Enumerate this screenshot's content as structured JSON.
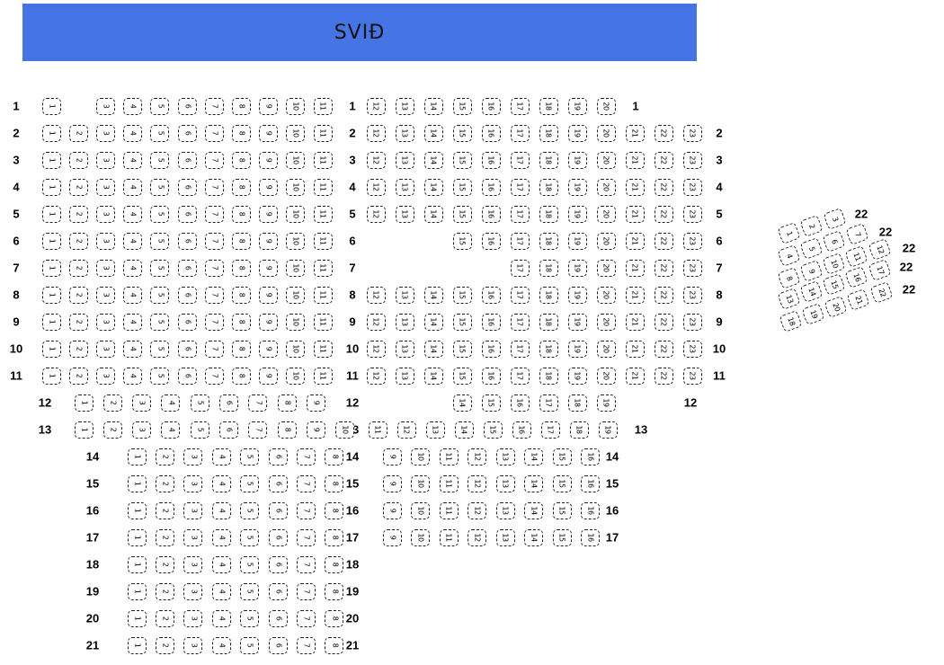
{
  "stage": {
    "label": "SVIÐ"
  },
  "colors": {
    "banner_blue": "#4575e5",
    "seat_border": "#222222",
    "text": "#000000"
  },
  "rows": [
    {
      "num": "1",
      "left_seats": [
        1,
        3,
        4,
        5,
        6,
        7,
        8,
        9,
        10,
        11
      ],
      "right_seats": [
        12,
        13,
        14,
        15,
        16,
        17,
        18,
        19,
        20
      ]
    },
    {
      "num": "2",
      "left_seats": [
        1,
        2,
        3,
        4,
        5,
        6,
        7,
        8,
        9,
        10,
        11
      ],
      "right_seats": [
        12,
        13,
        14,
        15,
        16,
        17,
        18,
        19,
        20,
        21,
        22,
        23
      ]
    },
    {
      "num": "3",
      "left_seats": [
        1,
        2,
        3,
        4,
        5,
        6,
        7,
        8,
        9,
        10,
        11
      ],
      "right_seats": [
        12,
        13,
        14,
        15,
        16,
        17,
        18,
        19,
        20,
        21,
        22,
        23
      ]
    },
    {
      "num": "4",
      "left_seats": [
        1,
        2,
        3,
        4,
        5,
        6,
        7,
        8,
        9,
        10,
        11
      ],
      "right_seats": [
        12,
        13,
        14,
        15,
        16,
        17,
        18,
        19,
        20,
        21,
        22,
        23
      ]
    },
    {
      "num": "5",
      "left_seats": [
        1,
        2,
        3,
        4,
        5,
        6,
        7,
        8,
        9,
        10,
        11
      ],
      "right_seats": [
        12,
        13,
        14,
        15,
        16,
        17,
        18,
        19,
        20,
        21,
        22,
        23
      ]
    },
    {
      "num": "6",
      "left_seats": [
        1,
        2,
        3,
        4,
        5,
        6,
        7,
        8,
        9,
        10,
        11
      ],
      "right_seats": [
        15,
        16,
        17,
        18,
        19,
        20,
        21,
        22,
        23
      ]
    },
    {
      "num": "7",
      "left_seats": [
        1,
        2,
        3,
        4,
        5,
        6,
        7,
        8,
        9,
        10,
        11
      ],
      "right_seats": [
        17,
        18,
        19,
        20,
        21,
        22,
        23
      ]
    },
    {
      "num": "8",
      "left_seats": [
        1,
        2,
        3,
        4,
        5,
        6,
        7,
        8,
        9,
        10,
        11
      ],
      "right_seats": [
        12,
        13,
        14,
        15,
        16,
        17,
        18,
        19,
        20,
        21,
        22,
        23
      ]
    },
    {
      "num": "9",
      "left_seats": [
        1,
        2,
        3,
        4,
        5,
        6,
        7,
        8,
        9,
        10,
        11
      ],
      "right_seats": [
        12,
        13,
        14,
        15,
        16,
        17,
        18,
        19,
        20,
        21,
        22,
        23
      ]
    },
    {
      "num": "10",
      "left_seats": [
        1,
        2,
        3,
        4,
        5,
        6,
        7,
        8,
        9,
        10,
        11
      ],
      "right_seats": [
        12,
        13,
        14,
        15,
        16,
        17,
        18,
        19,
        20,
        21,
        22,
        23
      ]
    },
    {
      "num": "11",
      "left_seats": [
        1,
        2,
        3,
        4,
        5,
        6,
        7,
        8,
        9,
        10,
        11
      ],
      "right_seats": [
        12,
        13,
        14,
        15,
        16,
        17,
        18,
        19,
        20,
        21,
        22,
        23
      ]
    },
    {
      "num": "12",
      "left_seats": [
        1,
        2,
        3,
        4,
        5,
        6,
        7,
        8,
        9
      ],
      "right_seats": [
        14,
        15,
        16,
        17,
        18,
        19
      ]
    },
    {
      "num": "13",
      "left_seats": [
        1,
        2,
        3,
        4,
        5,
        6,
        7,
        8,
        9,
        10
      ],
      "right_seats": [
        11,
        12,
        13,
        14,
        15,
        16,
        17,
        18,
        19
      ]
    },
    {
      "num": "14",
      "left_seats": [
        1,
        2,
        3,
        4,
        5,
        6,
        7,
        8
      ],
      "right_seats": [
        9,
        10,
        11,
        12,
        13,
        14,
        15,
        16
      ]
    },
    {
      "num": "15",
      "left_seats": [
        1,
        2,
        3,
        4,
        5,
        6,
        7,
        8
      ],
      "right_seats": [
        9,
        10,
        11,
        12,
        13,
        14,
        15,
        16
      ]
    },
    {
      "num": "16",
      "left_seats": [
        1,
        2,
        3,
        4,
        5,
        6,
        7,
        8
      ],
      "right_seats": [
        9,
        10,
        11,
        12,
        13,
        14,
        15,
        16
      ]
    },
    {
      "num": "17",
      "left_seats": [
        1,
        2,
        3,
        4,
        5,
        6,
        7,
        8
      ],
      "right_seats": [
        9,
        10,
        11,
        12,
        13,
        14,
        15,
        16
      ]
    },
    {
      "num": "18",
      "left_seats": [
        1,
        2,
        3,
        4,
        5,
        6,
        7,
        8
      ],
      "right_seats": []
    },
    {
      "num": "19",
      "left_seats": [
        1,
        2,
        3,
        4,
        5,
        6,
        7,
        8
      ],
      "right_seats": []
    },
    {
      "num": "20",
      "left_seats": [
        1,
        2,
        3,
        4,
        5,
        6,
        7,
        8
      ],
      "right_seats": []
    },
    {
      "num": "21",
      "left_seats": [
        1,
        2,
        3,
        4,
        5,
        6,
        7,
        8
      ],
      "right_seats": []
    }
  ],
  "corner_section": {
    "row_label": "22",
    "lines": [
      {
        "label": "22",
        "seats": [
          3,
          2,
          1
        ]
      },
      {
        "label": "22",
        "seats": [
          7,
          6,
          5,
          4
        ]
      },
      {
        "label": "22",
        "seats": [
          12,
          11,
          10,
          9,
          8
        ]
      },
      {
        "label": "22",
        "seats": [
          17,
          16,
          15,
          14,
          13
        ]
      },
      {
        "label": "22",
        "seats": [
          22,
          21,
          20,
          19,
          18
        ]
      }
    ]
  }
}
